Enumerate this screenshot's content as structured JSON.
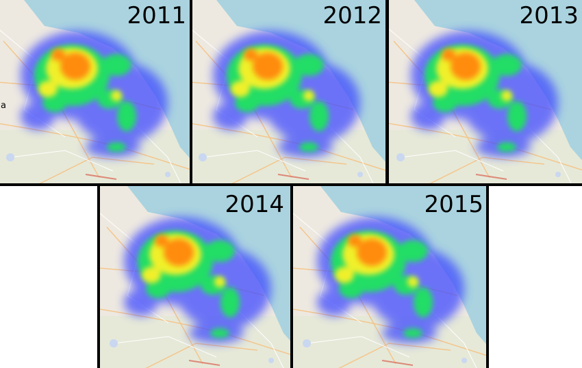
{
  "panels": [
    {
      "label": "2011",
      "edge_text": "a"
    },
    {
      "label": "2012"
    },
    {
      "label": "2013"
    },
    {
      "label": "2014"
    },
    {
      "label": "2015"
    }
  ]
}
